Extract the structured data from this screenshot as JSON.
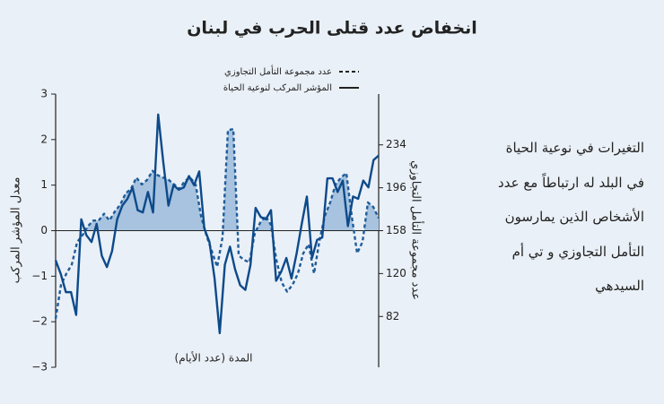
{
  "chart_data": {
    "type": "line",
    "title": "انخفاض عدد قتلى الحرب في لبنان",
    "x_label": "المدة (عدد الأيام)",
    "y_label": "معدل المؤشر المركب",
    "y2_label": "عدد مجموعة التأمل التجاوزي",
    "side_text": [
      "التغيرات في نوعية الحياة",
      "في البلد له ارتباطاً مع عدد",
      "الأشخاص الذين يمارسون",
      "التأمل التجاوزي و تي أم",
      "السيدهي"
    ],
    "ylim": [
      -3,
      3
    ],
    "yticks": [
      {
        "value": -3,
        "label": "−3"
      },
      {
        "value": -2,
        "label": "−2"
      },
      {
        "value": -1,
        "label": "−1"
      },
      0,
      1,
      2,
      3
    ],
    "y2lim": [
      37,
      279
    ],
    "y2ticks": [
      82,
      120,
      158,
      196,
      234
    ],
    "series": [
      {
        "name": "عدد مجموعة التأمل التجاوزي",
        "color": "#1f5c99",
        "axis": "y2",
        "dashed": true,
        "fill": "#a7c3df",
        "values": [
          80,
          110,
          120,
          128,
          148,
          154,
          162,
          167,
          167,
          173,
          167,
          175,
          181,
          191,
          195,
          205,
          199,
          203,
          211,
          207,
          205,
          203,
          199,
          195,
          202,
          205,
          199,
          171,
          154,
          140,
          126,
          152,
          247,
          248,
          136,
          132,
          130,
          156,
          165,
          171,
          163,
          132,
          112,
          104,
          110,
          120,
          138,
          146,
          120,
          149,
          171,
          183,
          199,
          205,
          209,
          171,
          138,
          148,
          183,
          179,
          169
        ]
      },
      {
        "name": "المؤشر المركب لنوعية الحياة",
        "color": "#0d4a8a",
        "axis": "y",
        "dashed": false,
        "values": [
          -0.65,
          -0.95,
          -1.35,
          -1.35,
          -1.85,
          0.25,
          -0.1,
          -0.25,
          0.15,
          -0.55,
          -0.8,
          -0.45,
          0.25,
          0.55,
          0.7,
          0.95,
          0.45,
          0.4,
          0.85,
          0.4,
          2.55,
          1.5,
          0.55,
          1.0,
          0.9,
          0.95,
          1.2,
          1.0,
          1.3,
          0.05,
          -0.25,
          -1.05,
          -2.25,
          -0.75,
          -0.35,
          -0.85,
          -1.2,
          -1.3,
          -0.75,
          0.5,
          0.3,
          0.25,
          0.45,
          -1.1,
          -0.9,
          -0.6,
          -1.05,
          -0.5,
          0.15,
          0.75,
          -0.6,
          -0.2,
          -0.15,
          1.15,
          1.15,
          0.85,
          1.1,
          0.1,
          0.75,
          0.7,
          1.1,
          0.95,
          1.55,
          1.65
        ]
      }
    ]
  }
}
